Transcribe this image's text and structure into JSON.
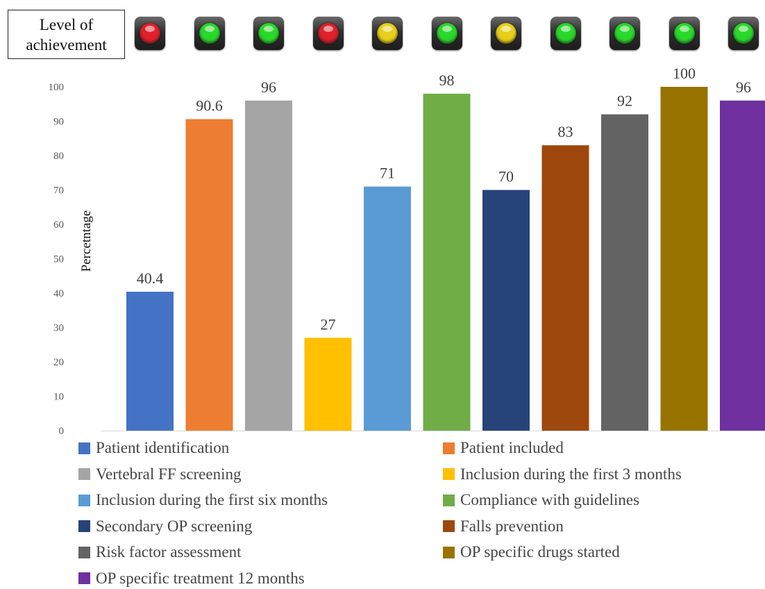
{
  "level_box": {
    "label_line1": "Level of",
    "label_line2": "achievement"
  },
  "indicator_lights": [
    {
      "status": "red",
      "color": "#e0202a"
    },
    {
      "status": "green",
      "color": "#2ad82a"
    },
    {
      "status": "green",
      "color": "#2ad82a"
    },
    {
      "status": "red",
      "color": "#e0202a"
    },
    {
      "status": "yellow",
      "color": "#e8cf1a"
    },
    {
      "status": "green",
      "color": "#2ad82a"
    },
    {
      "status": "yellow",
      "color": "#e8cf1a"
    },
    {
      "status": "green",
      "color": "#2ad82a"
    },
    {
      "status": "green",
      "color": "#2ad82a"
    },
    {
      "status": "green",
      "color": "#2ad82a"
    },
    {
      "status": "green",
      "color": "#2ad82a"
    }
  ],
  "chart_data": {
    "type": "bar",
    "ylabel": "Percetntage",
    "ylim": [
      0,
      100
    ],
    "yticks": [
      0,
      10,
      20,
      30,
      40,
      50,
      60,
      70,
      80,
      90,
      100
    ],
    "grid": false,
    "legend_position": "bottom",
    "series": [
      {
        "name": "Patient identification",
        "value": 40.4,
        "label": "40.4",
        "color": "#4472c4"
      },
      {
        "name": "Patient included",
        "value": 90.6,
        "label": "90.6",
        "color": "#ed7d31"
      },
      {
        "name": "Vertebral FF screening",
        "value": 96,
        "label": "96",
        "color": "#a5a5a5"
      },
      {
        "name": "Inclusion during the first 3 months",
        "value": 27,
        "label": "27",
        "color": "#ffc000"
      },
      {
        "name": "Inclusion during the first six months",
        "value": 71,
        "label": "71",
        "color": "#5b9bd5"
      },
      {
        "name": "Compliance with guidelines",
        "value": 98,
        "label": "98",
        "color": "#70ad47"
      },
      {
        "name": "Secondary OP screening",
        "value": 70,
        "label": "70",
        "color": "#264478"
      },
      {
        "name": "Falls prevention",
        "value": 83,
        "label": "83",
        "color": "#9e480e"
      },
      {
        "name": "Risk factor assessment",
        "value": 92,
        "label": "92",
        "color": "#636363"
      },
      {
        "name": "OP specific drugs started",
        "value": 100,
        "label": "100",
        "color": "#997300"
      },
      {
        "name": "OP specific treatment 12 months",
        "value": 96,
        "label": "96",
        "color": "#7030a0"
      }
    ]
  }
}
